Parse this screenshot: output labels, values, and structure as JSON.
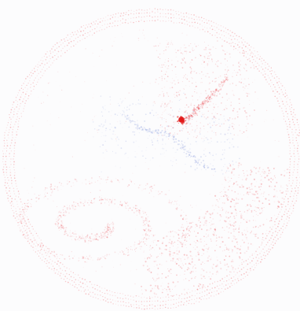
{
  "visual": {
    "background": "#fcfcfd",
    "primary_color": "#e8333b",
    "secondary_color": "#6f86d6",
    "accent_color": "#e01818",
    "elements": [
      "outer-dotted-rings",
      "red-scatter-points",
      "blue-scatter-points",
      "central-hotspot"
    ]
  }
}
